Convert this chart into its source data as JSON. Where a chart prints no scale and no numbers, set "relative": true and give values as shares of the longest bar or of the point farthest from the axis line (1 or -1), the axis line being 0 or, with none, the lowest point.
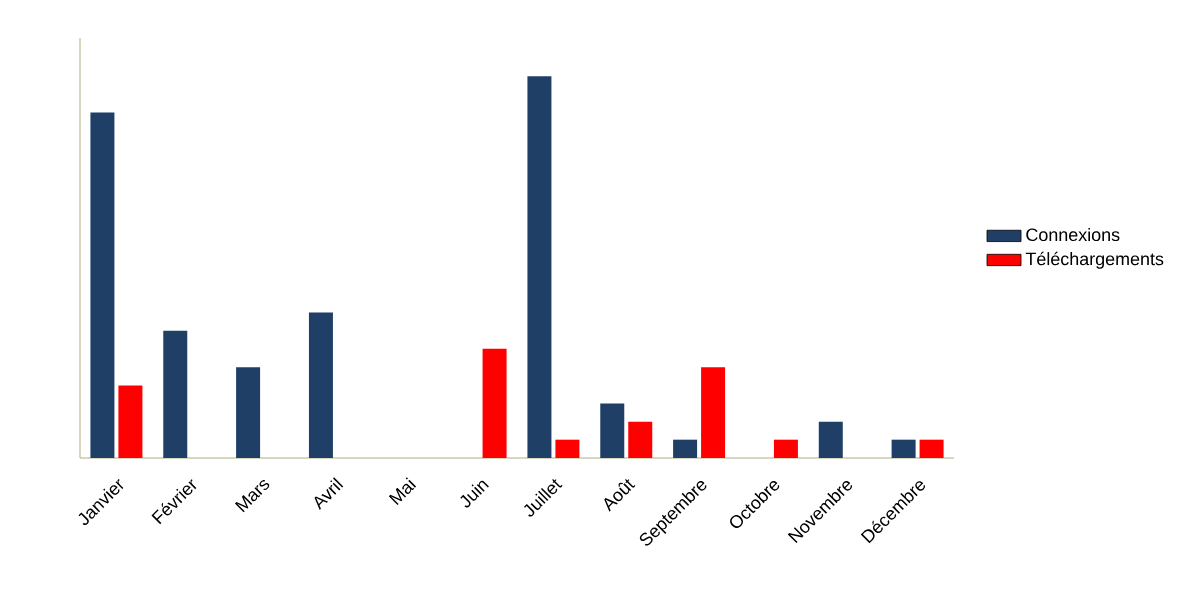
{
  "chart_data": {
    "type": "bar",
    "relative": true,
    "legend": "right",
    "categories": [
      "Janvier",
      "Février",
      "Mars",
      "Avril",
      "Mai",
      "Juin",
      "Juillet",
      "Août",
      "Septembre",
      "Octobre",
      "Novembre",
      "Décembre"
    ],
    "series": [
      {
        "name": "Connexions",
        "color": "#1f3f66",
        "values": [
          0.905,
          0.333,
          0.238,
          0.381,
          0,
          0,
          1,
          0.143,
          0.048,
          0,
          0.095,
          0.048
        ]
      },
      {
        "name": "Téléchargements",
        "color": "#ff0000",
        "values": [
          0.19,
          0,
          0,
          0,
          0,
          0.286,
          0.048,
          0.095,
          0.238,
          0.048,
          0,
          0.048
        ]
      }
    ]
  }
}
